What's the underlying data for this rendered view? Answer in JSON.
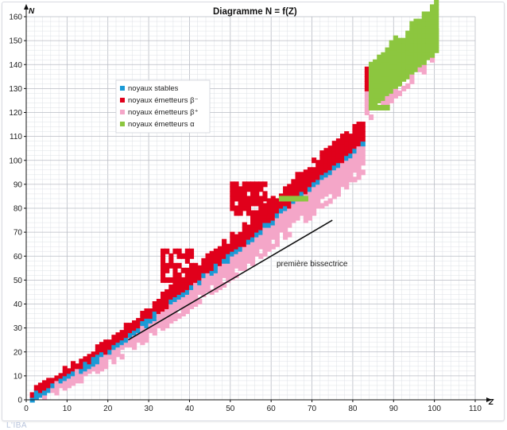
{
  "chart_data": {
    "type": "heatmap",
    "title": "Diagramme N = f(Z)",
    "xlabel": "Z",
    "ylabel": "N",
    "xlim": [
      0,
      110
    ],
    "ylim": [
      0,
      160
    ],
    "x_ticks": [
      "0",
      "10",
      "20",
      "30",
      "40",
      "50",
      "60",
      "70",
      "80",
      "90",
      "100",
      "110"
    ],
    "y_ticks": [
      "0",
      "10",
      "20",
      "30",
      "40",
      "50",
      "60",
      "70",
      "80",
      "90",
      "100",
      "110",
      "120",
      "130",
      "140",
      "150",
      "160"
    ],
    "grid": true,
    "legend_position": "upper-left",
    "series": [
      {
        "name": "noyaux stables",
        "color": "#1b9ad6"
      },
      {
        "name": "noyaux émetteurs β⁻",
        "color": "#e0001b"
      },
      {
        "name": "noyaux émetteurs β⁺",
        "color": "#f4a6c8"
      },
      {
        "name": "noyaux émetteurs α",
        "color": "#8cc63f"
      }
    ],
    "annotation": {
      "label": "première bissectrice",
      "line_from": [
        25,
        25
      ],
      "line_to": [
        75,
        75
      ]
    }
  },
  "caption": "L'IBA"
}
